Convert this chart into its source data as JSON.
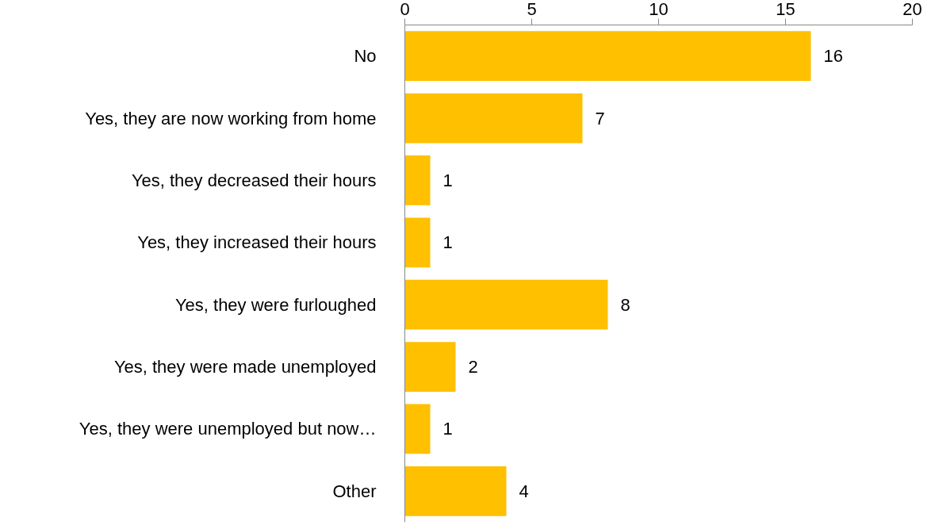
{
  "chart_data": {
    "type": "bar",
    "orientation": "horizontal",
    "categories": [
      "No",
      "Yes, they are now working from home",
      "Yes, they decreased their hours",
      "Yes, they increased their hours",
      "Yes, they were furloughed",
      "Yes, they were made unemployed",
      "Yes, they were unemployed but now…",
      "Other"
    ],
    "values": [
      16,
      7,
      1,
      1,
      8,
      2,
      1,
      4
    ],
    "color": "#ffc000",
    "xlim": [
      0,
      20
    ],
    "xticks": [
      0,
      5,
      10,
      15,
      20
    ],
    "grid": false,
    "data_labels": true
  }
}
